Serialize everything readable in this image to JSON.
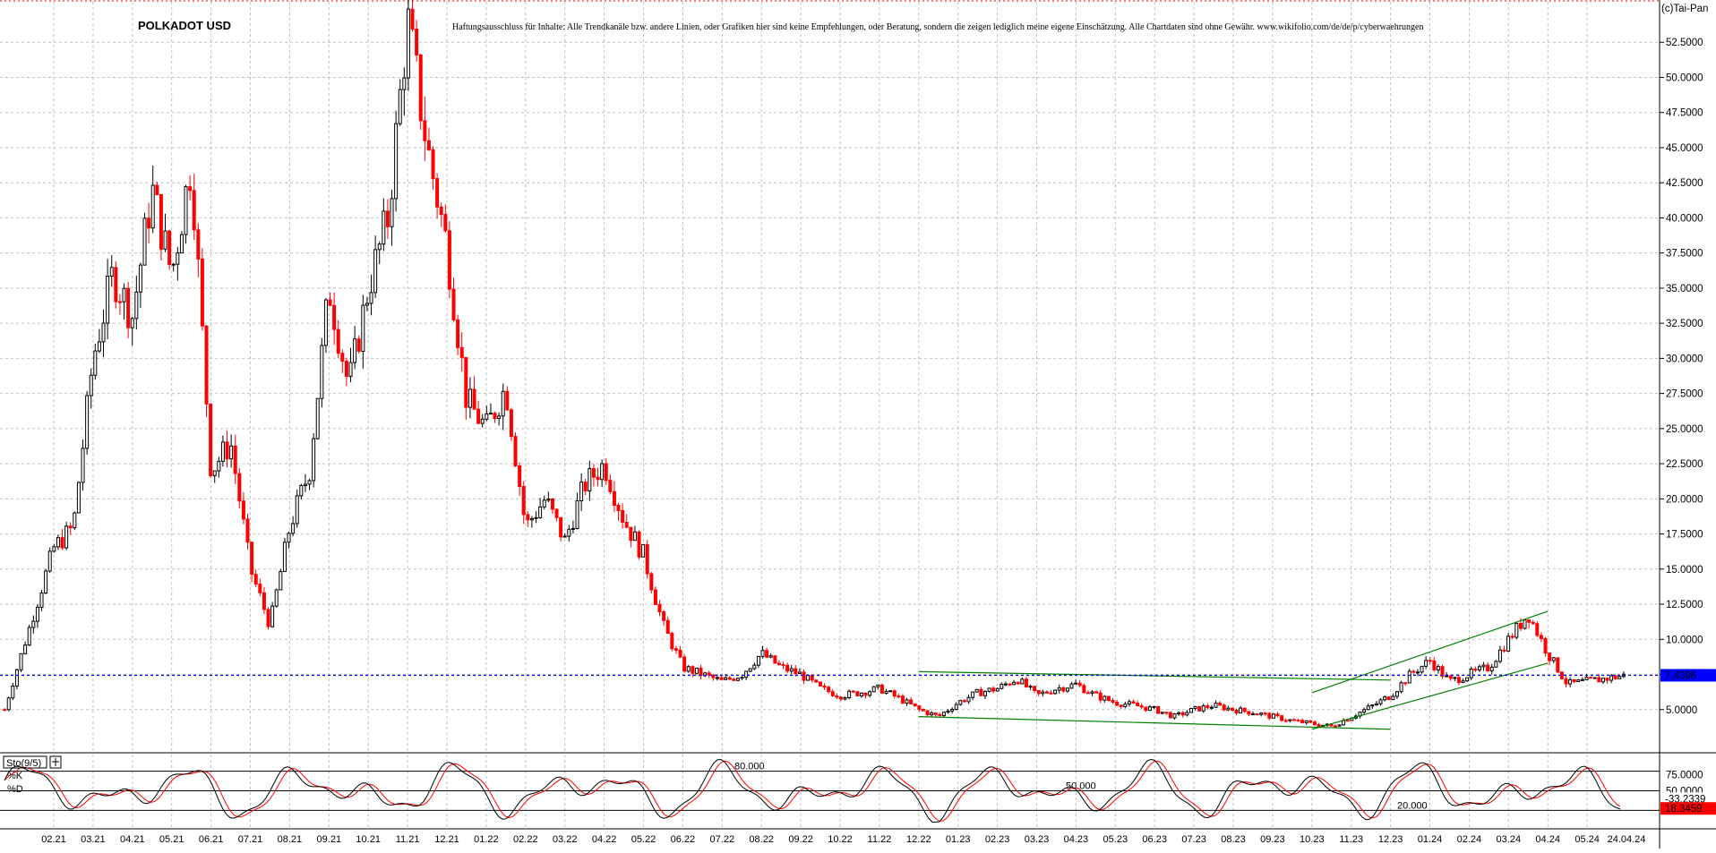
{
  "chart_data": {
    "type": "candlestick",
    "title": "POLKADOT USD",
    "disclaimer": "Haftungsausschluss für Inhalte: Alle Trendkanäle bzw. andere Linien, oder Grafiken hier sind keine Empfehlungen, oder Beratung, sondern die zeigen lediglich meine eigene Einschätzung. Alle Chartdaten sind ohne Gewähr. www.wikifolio.com/de/de/p/cyberwaehrungen",
    "copyright": "(c)Tai-Pan",
    "y_axis": {
      "min": 2.5,
      "max": 55.0,
      "tick_labels": [
        "5.0000",
        "7.5000",
        "10.0000",
        "12.5000",
        "15.0000",
        "17.5000",
        "20.0000",
        "22.5000",
        "25.0000",
        "27.5000",
        "30.0000",
        "32.5000",
        "35.0000",
        "37.5000",
        "40.0000",
        "42.5000",
        "45.0000",
        "47.5000",
        "50.0000",
        "52.5000"
      ],
      "ticks": [
        5,
        7.5,
        10,
        12.5,
        15,
        17.5,
        20,
        22.5,
        25,
        27.5,
        30,
        32.5,
        35,
        37.5,
        40,
        42.5,
        45,
        47.5,
        50,
        52.5
      ]
    },
    "x_axis": {
      "tick_labels": [
        "02.21",
        "03.21",
        "04.21",
        "05.21",
        "06.21",
        "07.21",
        "08.21",
        "09.21",
        "10.21",
        "11.21",
        "12.21",
        "01.22",
        "02.22",
        "03.22",
        "04.22",
        "05.22",
        "06.22",
        "07.22",
        "08.22",
        "09.22",
        "10.22",
        "11.22",
        "12.22",
        "01.23",
        "02.23",
        "03.23",
        "04.23",
        "05.23",
        "06.23",
        "07.23",
        "08.23",
        "09.23",
        "10.23",
        "11.23",
        "12.23",
        "01.24",
        "02.24",
        "03.24",
        "04.24",
        "05.24",
        "24.04.24"
      ]
    },
    "current_price": {
      "value": 7.4396,
      "label": "7.4396",
      "color": "#0000ff"
    },
    "price_path": [
      [
        "01.21",
        5.0
      ],
      [
        "02.21",
        16.5
      ],
      [
        "02.21",
        18.0
      ],
      [
        "03.21",
        30.0
      ],
      [
        "03.21",
        36.0
      ],
      [
        "04.21",
        33.0
      ],
      [
        "04.21",
        42.0
      ],
      [
        "05.21",
        36.0
      ],
      [
        "05.21",
        44.0
      ],
      [
        "06.21",
        22.0
      ],
      [
        "06.21",
        24.0
      ],
      [
        "07.21",
        15.0
      ],
      [
        "07.21",
        11.0
      ],
      [
        "08.21",
        18.0
      ],
      [
        "08.21",
        22.0
      ],
      [
        "09.21",
        35.0
      ],
      [
        "09.21",
        28.0
      ],
      [
        "10.21",
        35.0
      ],
      [
        "10.21",
        40.0
      ],
      [
        "11.21",
        54.0
      ],
      [
        "11.21",
        45.0
      ],
      [
        "12.21",
        38.0
      ],
      [
        "12.21",
        27.0
      ],
      [
        "01.22",
        25.0
      ],
      [
        "01.22",
        28.0
      ],
      [
        "02.22",
        18.0
      ],
      [
        "02.22",
        20.0
      ],
      [
        "03.22",
        17.0
      ],
      [
        "03.22",
        21.0
      ],
      [
        "04.22",
        22.5
      ],
      [
        "04.22",
        18.5
      ],
      [
        "05.22",
        16.0
      ],
      [
        "05.22",
        11.0
      ],
      [
        "06.22",
        8.0
      ],
      [
        "06.22",
        7.5
      ],
      [
        "07.22",
        7.0
      ],
      [
        "07.22",
        7.5
      ],
      [
        "08.22",
        9.0
      ],
      [
        "08.22",
        8.0
      ],
      [
        "09.22",
        7.5
      ],
      [
        "09.22",
        6.5
      ],
      [
        "10.22",
        6.0
      ],
      [
        "10.22",
        6.2
      ],
      [
        "11.22",
        6.5
      ],
      [
        "11.22",
        5.8
      ],
      [
        "12.22",
        5.0
      ],
      [
        "12.22",
        4.5
      ],
      [
        "01.23",
        5.5
      ],
      [
        "01.23",
        6.2
      ],
      [
        "02.23",
        6.5
      ],
      [
        "02.23",
        7.2
      ],
      [
        "03.23",
        6.0
      ],
      [
        "03.23",
        6.5
      ],
      [
        "04.23",
        6.8
      ],
      [
        "04.23",
        6.0
      ],
      [
        "05.23",
        5.5
      ],
      [
        "05.23",
        5.3
      ],
      [
        "06.23",
        5.0
      ],
      [
        "06.23",
        4.5
      ],
      [
        "07.23",
        5.0
      ],
      [
        "07.23",
        5.3
      ],
      [
        "08.23",
        5.0
      ],
      [
        "08.23",
        4.8
      ],
      [
        "09.23",
        4.5
      ],
      [
        "09.23",
        4.2
      ],
      [
        "10.23",
        4.0
      ],
      [
        "10.23",
        3.8
      ],
      [
        "11.23",
        4.5
      ],
      [
        "11.23",
        5.2
      ],
      [
        "12.23",
        6.0
      ],
      [
        "12.23",
        7.5
      ],
      [
        "01.24",
        8.5
      ],
      [
        "01.24",
        7.0
      ],
      [
        "02.24",
        7.5
      ],
      [
        "02.24",
        8.0
      ],
      [
        "03.24",
        10.0
      ],
      [
        "03.24",
        11.8
      ],
      [
        "04.24",
        9.0
      ],
      [
        "04.24",
        6.8
      ],
      [
        "24.04.24",
        7.44
      ]
    ],
    "trend_lines": [
      {
        "from": [
          "12.22",
          7.7
        ],
        "to": [
          "12.23",
          7.1
        ],
        "color": "#008000"
      },
      {
        "from": [
          "12.22",
          4.5
        ],
        "to": [
          "12.23",
          3.6
        ],
        "color": "#008000"
      },
      {
        "from": [
          "10.23",
          6.2
        ],
        "to": [
          "04.24",
          12.0
        ],
        "color": "#008000"
      },
      {
        "from": [
          "10.23",
          3.6
        ],
        "to": [
          "04.24",
          8.3
        ],
        "color": "#008000"
      }
    ],
    "indicator": {
      "name": "Sto(9/5)",
      "k_label": "%K",
      "d_label": "%D",
      "levels": [
        20,
        50,
        80
      ],
      "level_labels": [
        "20.000",
        "50.000",
        "80.000"
      ],
      "k_value": -33.2339,
      "k_value_label": "-33.2339",
      "d_value": 18.3459,
      "d_value_label": "18.3459",
      "axis_tick_labels": [
        "75.0000",
        "50.0000",
        "25.0000"
      ],
      "axis_ticks": [
        75,
        50,
        25
      ]
    }
  },
  "colors": {
    "up": "#000000",
    "down": "#ff0000",
    "grid": "#c0c0c0",
    "current_line": "#0000ff",
    "d_badge": "#ff0000"
  }
}
